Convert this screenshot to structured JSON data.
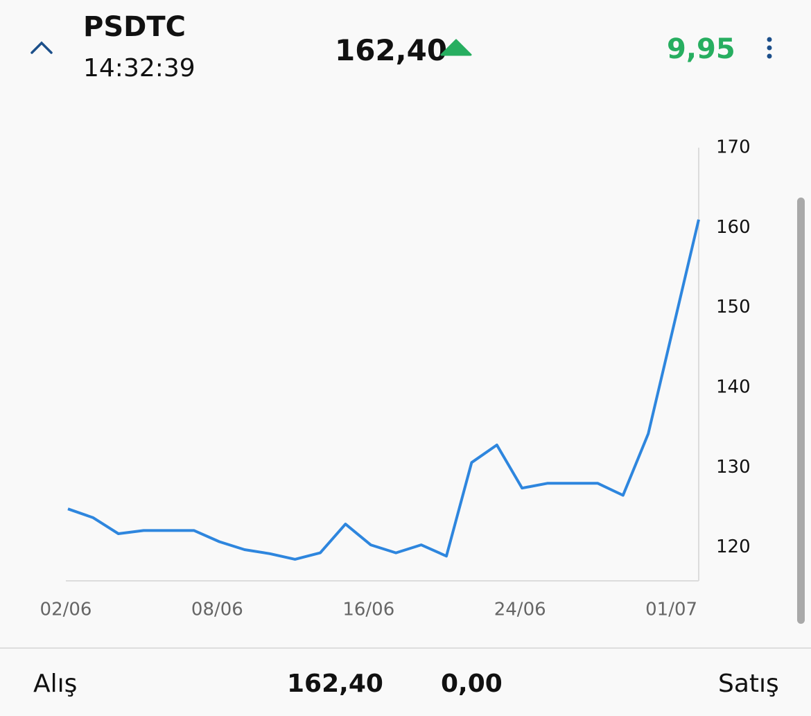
{
  "header": {
    "symbol": "PSDTC",
    "time": "14:32:39",
    "price": "162,40",
    "change": "9,95"
  },
  "chart_data": {
    "type": "line",
    "categories": [
      "02/06",
      null,
      null,
      null,
      null,
      null,
      "08/06",
      null,
      null,
      null,
      null,
      null,
      "16/06",
      null,
      null,
      null,
      null,
      null,
      "24/06",
      null,
      null,
      null,
      null,
      null,
      "01/07",
      null
    ],
    "values": [
      124.8,
      123.7,
      121.7,
      122.1,
      122.1,
      122.1,
      120.7,
      119.7,
      119.2,
      118.5,
      119.3,
      122.9,
      120.3,
      119.3,
      120.3,
      118.9,
      130.6,
      132.8,
      127.4,
      128.0,
      128.0,
      128.0,
      126.5,
      134.2,
      147.6,
      161.0
    ],
    "color": "#2e86de",
    "ylim": [
      115.8,
      170
    ],
    "yticks": [
      120,
      130,
      140,
      150,
      160,
      170
    ],
    "grid": false
  },
  "footer": {
    "bid_label": "Alış",
    "bid": "162,40",
    "ask": "0,00",
    "ask_label": "Satış"
  }
}
